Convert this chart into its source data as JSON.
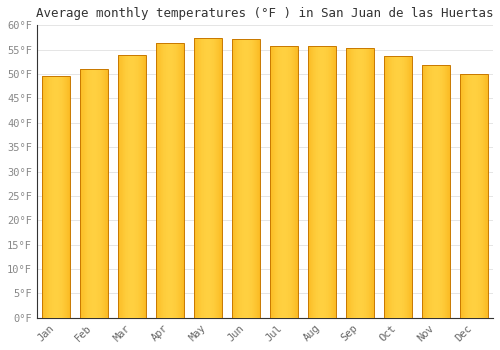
{
  "months": [
    "Jan",
    "Feb",
    "Mar",
    "Apr",
    "May",
    "Jun",
    "Jul",
    "Aug",
    "Sep",
    "Oct",
    "Nov",
    "Dec"
  ],
  "values": [
    49.5,
    51.1,
    54.0,
    56.3,
    57.4,
    57.2,
    55.8,
    55.8,
    55.4,
    53.8,
    51.8,
    50.0
  ],
  "title": "Average monthly temperatures (°F ) in San Juan de las Huertas",
  "ylim": [
    0,
    60
  ],
  "ytick_step": 5,
  "bar_color_center": "#FFD040",
  "bar_color_edge": "#F5A000",
  "background_color": "#FFFFFF",
  "grid_color": "#E0E0E0",
  "title_fontsize": 9,
  "tick_fontsize": 7.5,
  "font_family": "monospace",
  "bar_width": 0.75,
  "figsize": [
    5.0,
    3.5
  ],
  "dpi": 100
}
